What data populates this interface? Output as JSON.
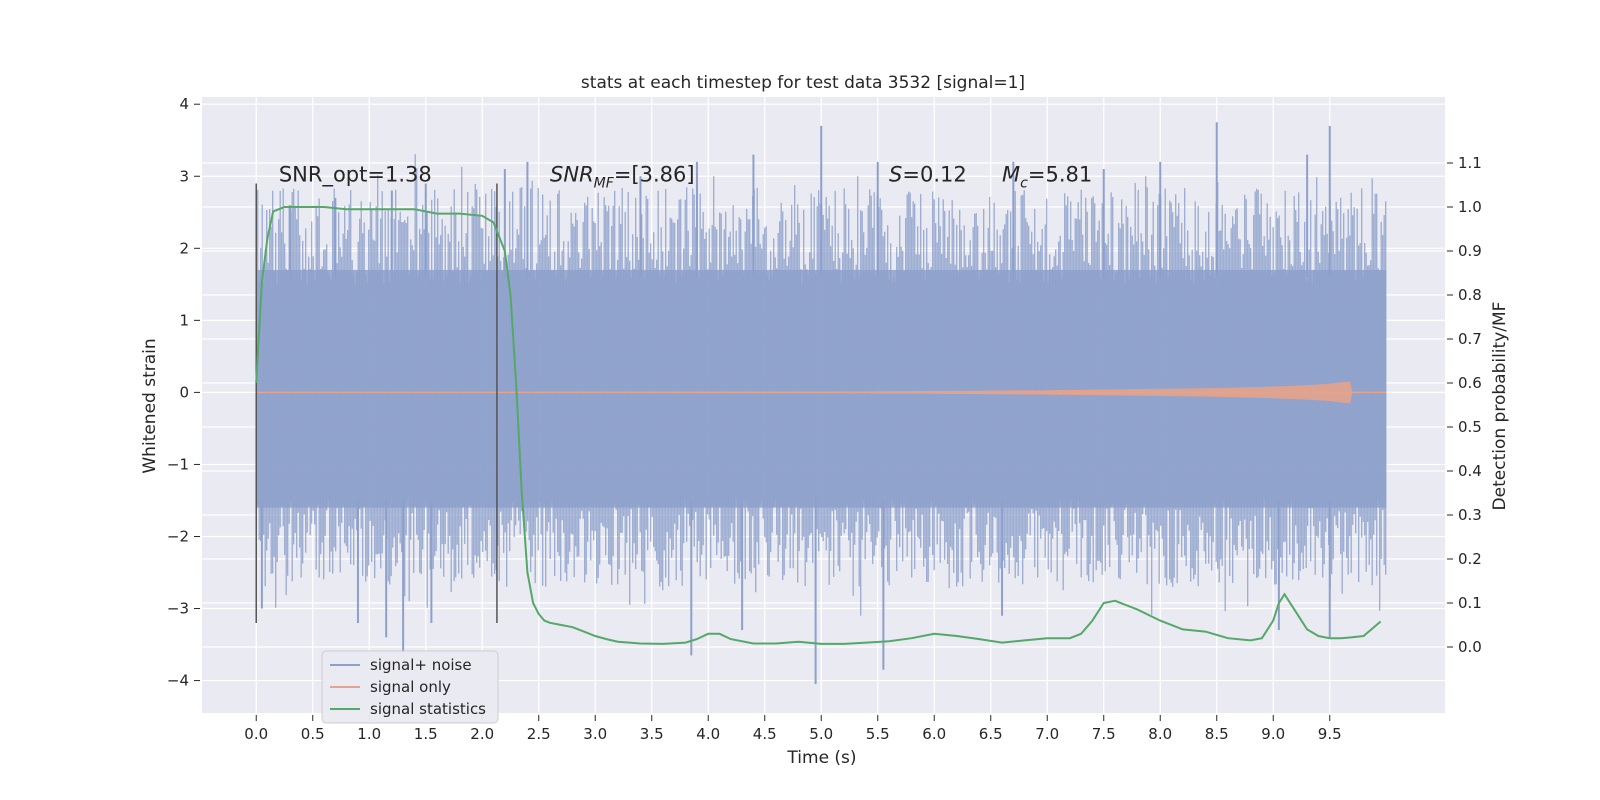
{
  "chart_data": {
    "type": "line",
    "title": "stats at each timestep for test data 3532 [signal=1]",
    "xlabel": "Time (s)",
    "ylabel": "Whitened strain",
    "y2label": "Detection probability/MF",
    "xlim": [
      -0.48,
      10.52
    ],
    "ylim": [
      -4.45,
      4.1
    ],
    "y2lim": [
      -0.15,
      1.25
    ],
    "x_ticks": [
      0.0,
      0.5,
      1.0,
      1.5,
      2.0,
      2.5,
      3.0,
      3.5,
      4.0,
      4.5,
      5.0,
      5.5,
      6.0,
      6.5,
      7.0,
      7.5,
      8.0,
      8.5,
      9.0,
      9.5
    ],
    "x_tick_labels": [
      "0.0",
      "0.5",
      "1.0",
      "1.5",
      "2.0",
      "2.5",
      "3.0",
      "3.5",
      "4.0",
      "4.5",
      "5.0",
      "5.5",
      "6.0",
      "6.5",
      "7.0",
      "7.5",
      "8.0",
      "8.5",
      "9.0",
      "9.5"
    ],
    "y_ticks": [
      -4,
      -3,
      -2,
      -1,
      0,
      1,
      2,
      3,
      4
    ],
    "y_tick_labels": [
      "−4",
      "−3",
      "−2",
      "−1",
      "0",
      "1",
      "2",
      "3",
      "4"
    ],
    "y2_ticks": [
      0.0,
      0.1,
      0.2,
      0.3,
      0.4,
      0.5,
      0.6,
      0.7,
      0.8,
      0.9,
      1.0,
      1.1
    ],
    "y2_tick_labels": [
      "0.0",
      "0.1",
      "0.2",
      "0.3",
      "0.4",
      "0.5",
      "0.6",
      "0.7",
      "0.8",
      "0.9",
      "1.0",
      "1.1"
    ],
    "grid": true,
    "legend_position": "lower-left",
    "series": [
      {
        "name": "signal+ noise",
        "color": "#8da0cb",
        "axis": "left",
        "kind": "noise",
        "x_range": [
          0.0,
          10.0
        ],
        "typical_band": [
          -1.6,
          1.7
        ],
        "peaks": [
          {
            "x": 0.3,
            "y": 2.6
          },
          {
            "x": 0.7,
            "y": 2.7
          },
          {
            "x": 1.2,
            "y": 2.8
          },
          {
            "x": 1.5,
            "y": 2.9
          },
          {
            "x": 2.2,
            "y": 3.1
          },
          {
            "x": 2.4,
            "y": 3.2
          },
          {
            "x": 3.4,
            "y": 3.0
          },
          {
            "x": 3.9,
            "y": 3.2
          },
          {
            "x": 4.4,
            "y": 3.3
          },
          {
            "x": 5.0,
            "y": 3.7
          },
          {
            "x": 5.5,
            "y": 3.2
          },
          {
            "x": 6.7,
            "y": 3.2
          },
          {
            "x": 7.5,
            "y": 3.1
          },
          {
            "x": 8.0,
            "y": 3.2
          },
          {
            "x": 8.5,
            "y": 3.75
          },
          {
            "x": 9.3,
            "y": 3.3
          },
          {
            "x": 9.5,
            "y": 3.7
          }
        ],
        "troughs": [
          {
            "x": 0.05,
            "y": -3.0
          },
          {
            "x": 0.9,
            "y": -3.2
          },
          {
            "x": 1.15,
            "y": -3.4
          },
          {
            "x": 1.3,
            "y": -3.6
          },
          {
            "x": 1.55,
            "y": -3.2
          },
          {
            "x": 3.85,
            "y": -3.65
          },
          {
            "x": 4.3,
            "y": -3.3
          },
          {
            "x": 4.95,
            "y": -4.05
          },
          {
            "x": 5.55,
            "y": -3.85
          },
          {
            "x": 6.6,
            "y": -3.1
          },
          {
            "x": 9.05,
            "y": -3.3
          },
          {
            "x": 9.5,
            "y": -3.4
          }
        ]
      },
      {
        "name": "signal only",
        "color": "#e5a38c",
        "axis": "left",
        "kind": "chirp",
        "x": [
          0.0,
          5.0,
          7.0,
          8.0,
          8.5,
          9.0,
          9.3,
          9.5,
          9.6,
          9.68,
          9.7,
          10.0
        ],
        "envelope": [
          0.005,
          0.01,
          0.03,
          0.05,
          0.06,
          0.08,
          0.1,
          0.12,
          0.14,
          0.15,
          0.0,
          0.0
        ]
      },
      {
        "name": "signal statistics",
        "color": "#55a868",
        "axis": "right",
        "kind": "line",
        "x": [
          0.0,
          0.05,
          0.1,
          0.15,
          0.25,
          0.4,
          0.6,
          0.8,
          1.0,
          1.2,
          1.4,
          1.6,
          1.8,
          2.0,
          2.1,
          2.2,
          2.25,
          2.3,
          2.35,
          2.4,
          2.45,
          2.5,
          2.55,
          2.6,
          2.7,
          2.8,
          2.9,
          3.0,
          3.1,
          3.2,
          3.4,
          3.6,
          3.8,
          3.9,
          4.0,
          4.1,
          4.2,
          4.4,
          4.6,
          4.8,
          5.0,
          5.2,
          5.4,
          5.6,
          5.8,
          6.0,
          6.2,
          6.4,
          6.6,
          6.8,
          7.0,
          7.2,
          7.3,
          7.4,
          7.5,
          7.6,
          7.7,
          7.8,
          8.0,
          8.2,
          8.4,
          8.6,
          8.8,
          8.9,
          9.0,
          9.05,
          9.1,
          9.2,
          9.3,
          9.4,
          9.5,
          9.6,
          9.7,
          9.8,
          9.95
        ],
        "y": [
          0.6,
          0.83,
          0.93,
          0.99,
          1.0,
          1.0,
          1.0,
          0.995,
          0.995,
          0.995,
          0.995,
          0.985,
          0.985,
          0.98,
          0.965,
          0.9,
          0.8,
          0.6,
          0.35,
          0.17,
          0.1,
          0.075,
          0.06,
          0.055,
          0.05,
          0.045,
          0.035,
          0.025,
          0.018,
          0.012,
          0.008,
          0.007,
          0.01,
          0.018,
          0.03,
          0.03,
          0.018,
          0.008,
          0.008,
          0.012,
          0.007,
          0.007,
          0.01,
          0.013,
          0.02,
          0.03,
          0.025,
          0.018,
          0.01,
          0.015,
          0.02,
          0.02,
          0.03,
          0.06,
          0.1,
          0.105,
          0.095,
          0.085,
          0.06,
          0.04,
          0.035,
          0.02,
          0.015,
          0.02,
          0.06,
          0.1,
          0.12,
          0.08,
          0.04,
          0.025,
          0.02,
          0.02,
          0.022,
          0.025,
          0.058
        ]
      }
    ],
    "annotations": [
      {
        "key": "snr_opt",
        "text": "SNR_opt=1.38",
        "italic_prefix": "",
        "x": 0.2,
        "y": 3.0
      },
      {
        "key": "snr_mf",
        "italic_prefix": "SNR",
        "subscript": "MF",
        "suffix": "=[3.86]",
        "x": 2.6,
        "y": 3.0
      },
      {
        "key": "s",
        "italic_prefix": "S",
        "suffix": "=0.12",
        "x": 5.6,
        "y": 3.0
      },
      {
        "key": "mc",
        "italic_prefix": "M",
        "subscript": "c",
        "suffix": "=5.81",
        "x": 6.6,
        "y": 3.0
      }
    ],
    "vertical_markers": [
      {
        "x": 0.0,
        "y_range": [
          -3.2,
          2.9
        ]
      },
      {
        "x": 2.13,
        "y_range": [
          -3.2,
          2.9
        ]
      }
    ]
  }
}
